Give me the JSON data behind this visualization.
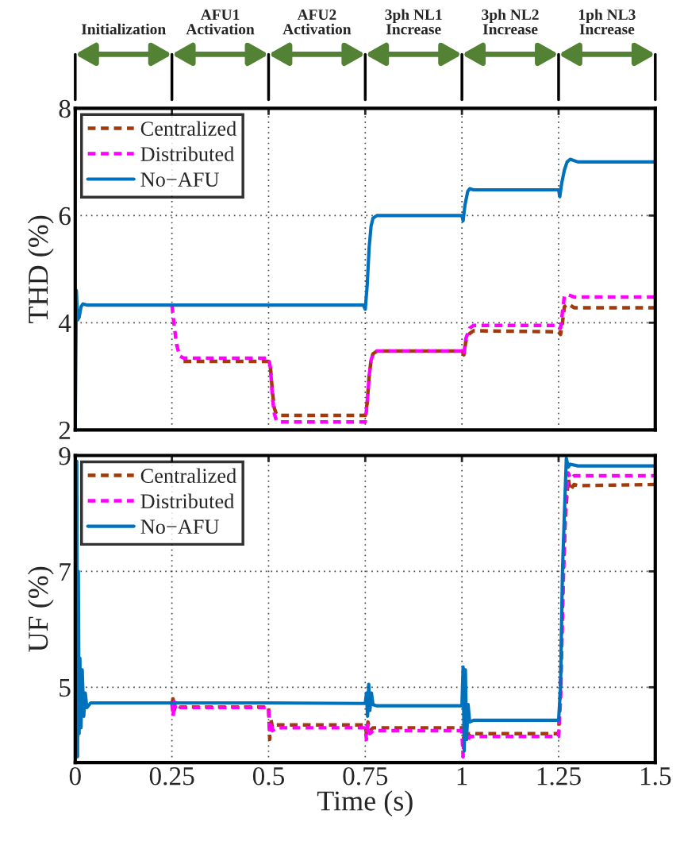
{
  "chart_data": [
    {
      "type": "line",
      "ylabel": "THD (%)",
      "xlim": [
        0,
        1.5
      ],
      "ylim": [
        2,
        8
      ],
      "xticks": [
        0,
        0.25,
        0.5,
        0.75,
        1,
        1.25,
        1.5
      ],
      "yticks": [
        2,
        4,
        6,
        8
      ],
      "tick_labels": "y",
      "grid": true,
      "legend": "top left",
      "marker": "none",
      "annotations": [
        "Initialization",
        "AFU1\nActivation",
        "AFU2\nActivation",
        "3ph NL1\nIncrease",
        "3ph NL2\nIncrease",
        "1ph NL3\nIncrease"
      ],
      "series": [
        {
          "name": "Centralized",
          "color": "#a23b0c",
          "line_style": "dashed",
          "x": [
            0.28,
            0.5,
            0.505,
            0.51,
            0.515,
            0.52,
            0.53,
            0.75,
            0.755,
            0.76,
            0.765,
            0.77,
            0.78,
            1.0,
            1.005,
            1.01,
            1.02,
            1.03,
            1.25,
            1.255,
            1.26,
            1.265,
            1.275,
            1.29,
            1.5
          ],
          "values": [
            3.28,
            3.28,
            3.15,
            2.7,
            2.4,
            2.3,
            2.27,
            2.27,
            2.5,
            3.0,
            3.3,
            3.42,
            3.47,
            3.47,
            3.4,
            3.65,
            3.8,
            3.85,
            3.83,
            3.78,
            4.0,
            4.3,
            4.35,
            4.28,
            4.28
          ]
        },
        {
          "name": "Distributed",
          "color": "#ff00ff",
          "line_style": "dashed",
          "x": [
            0.25,
            0.255,
            0.262,
            0.27,
            0.28,
            0.5,
            0.505,
            0.51,
            0.515,
            0.52,
            0.53,
            0.75,
            0.755,
            0.76,
            0.765,
            0.77,
            0.78,
            1.0,
            1.005,
            1.01,
            1.02,
            1.03,
            1.25,
            1.255,
            1.26,
            1.265,
            1.275,
            1.29,
            1.5
          ],
          "values": [
            4.33,
            4.0,
            3.6,
            3.38,
            3.34,
            3.34,
            3.15,
            2.6,
            2.3,
            2.18,
            2.15,
            2.15,
            2.5,
            3.0,
            3.3,
            3.42,
            3.47,
            3.47,
            3.4,
            3.7,
            3.9,
            3.95,
            3.95,
            3.9,
            4.2,
            4.5,
            4.52,
            4.48,
            4.48
          ]
        },
        {
          "name": "No−AFU",
          "color": "#0072bd",
          "line_style": "solid",
          "x": [
            0,
            0.003,
            0.006,
            0.01,
            0.015,
            0.02,
            0.03,
            0.25,
            0.5,
            0.745,
            0.75,
            0.755,
            0.76,
            0.765,
            0.77,
            0.78,
            1.0,
            1.003,
            1.008,
            1.015,
            1.02,
            1.03,
            1.25,
            1.253,
            1.258,
            1.265,
            1.272,
            1.28,
            1.3,
            1.5
          ],
          "values": [
            2.0,
            4.6,
            4.05,
            4.1,
            4.3,
            4.35,
            4.33,
            4.33,
            4.33,
            4.33,
            4.25,
            4.7,
            5.4,
            5.8,
            5.95,
            6.0,
            6.0,
            5.9,
            6.2,
            6.45,
            6.5,
            6.48,
            6.48,
            6.35,
            6.6,
            6.85,
            7.0,
            7.05,
            7.0,
            7.0
          ]
        }
      ]
    },
    {
      "type": "line",
      "xlabel": "Time (s)",
      "ylabel": "UF (%)",
      "xlim": [
        0,
        1.5
      ],
      "ylim": [
        3.7,
        9
      ],
      "xticks": [
        0,
        {
          "value": 0.25,
          "label": "0.25"
        },
        {
          "value": 0.5,
          "label": "0.5"
        },
        {
          "value": 0.75,
          "label": "0.75"
        },
        1,
        {
          "value": 1.25,
          "label": "1.25"
        },
        {
          "value": 1.5,
          "label": "1.5"
        }
      ],
      "yticks": [
        5,
        7,
        9
      ],
      "grid": true,
      "legend": "top left",
      "marker": "none",
      "series": [
        {
          "name": "Centralized",
          "color": "#a23b0c",
          "line_style": "dashed",
          "x": [
            0.25,
            0.253,
            0.256,
            0.26,
            0.27,
            0.5,
            0.503,
            0.506,
            0.51,
            0.52,
            0.75,
            0.753,
            0.757,
            0.762,
            0.77,
            1.0,
            1.003,
            1.007,
            1.012,
            1.02,
            1.25,
            1.255,
            1.262,
            1.268,
            1.275,
            1.28,
            1.29,
            1.3,
            1.5
          ],
          "values": [
            4.72,
            4.8,
            4.6,
            4.7,
            4.66,
            4.66,
            4.1,
            4.45,
            4.3,
            4.35,
            4.35,
            4.2,
            4.4,
            4.25,
            4.3,
            4.3,
            3.95,
            4.4,
            4.1,
            4.2,
            4.2,
            5.0,
            7.0,
            8.0,
            8.6,
            8.4,
            8.5,
            8.48,
            8.5
          ]
        },
        {
          "name": "Distributed",
          "color": "#ff00ff",
          "line_style": "dashed",
          "x": [
            0.25,
            0.253,
            0.256,
            0.26,
            0.27,
            0.5,
            0.503,
            0.506,
            0.51,
            0.52,
            0.75,
            0.753,
            0.757,
            0.762,
            0.77,
            1.0,
            1.003,
            1.007,
            1.012,
            1.02,
            1.25,
            1.255,
            1.262,
            1.268,
            1.275,
            1.28,
            1.29,
            1.3,
            1.5
          ],
          "values": [
            4.72,
            4.5,
            4.75,
            4.62,
            4.65,
            4.65,
            4.2,
            4.4,
            4.25,
            4.3,
            4.3,
            4.1,
            4.35,
            4.2,
            4.25,
            4.25,
            3.8,
            4.3,
            4.05,
            4.15,
            4.15,
            4.8,
            6.8,
            8.2,
            8.7,
            8.6,
            8.65,
            8.65,
            8.65
          ]
        },
        {
          "name": "No−AFU",
          "color": "#0072bd",
          "line_style": "solid",
          "x": [
            0,
            0.002,
            0.004,
            0.006,
            0.008,
            0.01,
            0.012,
            0.015,
            0.018,
            0.022,
            0.026,
            0.03,
            0.04,
            0.25,
            0.5,
            0.75,
            0.753,
            0.756,
            0.759,
            0.762,
            0.766,
            0.77,
            0.78,
            1.0,
            1.003,
            1.006,
            1.009,
            1.012,
            1.016,
            1.02,
            1.03,
            1.25,
            1.255,
            1.26,
            1.265,
            1.27,
            1.275,
            1.28,
            1.3,
            1.5
          ],
          "values": [
            9.0,
            6.2,
            8.9,
            3.8,
            7.0,
            4.2,
            5.5,
            4.3,
            5.3,
            4.5,
            4.9,
            4.65,
            4.73,
            4.73,
            4.73,
            4.72,
            4.9,
            4.5,
            5.05,
            4.6,
            4.9,
            4.7,
            4.68,
            4.68,
            5.35,
            3.9,
            5.3,
            4.1,
            4.7,
            4.4,
            4.43,
            4.43,
            5.0,
            7.0,
            8.0,
            8.95,
            8.8,
            8.85,
            8.82,
            8.82
          ]
        }
      ]
    }
  ]
}
